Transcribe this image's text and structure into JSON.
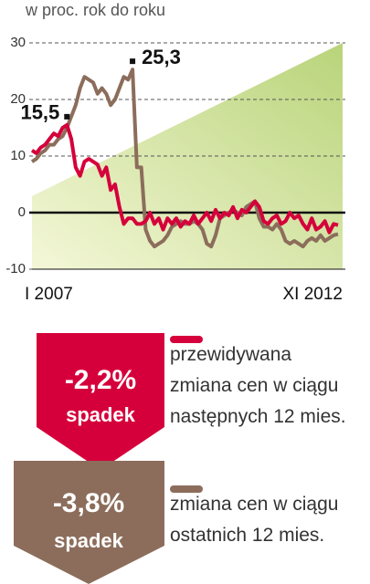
{
  "chart_data": {
    "type": "line",
    "subtitle": "w proc. rok do roku",
    "categories": [
      "I 2007",
      null,
      null,
      null,
      null,
      null,
      null,
      null,
      null,
      null,
      null,
      null,
      null,
      null,
      null,
      null,
      null,
      null,
      null,
      null,
      null,
      null,
      null,
      null,
      null,
      null,
      null,
      null,
      null,
      null,
      null,
      null,
      null,
      null,
      null,
      null,
      null,
      null,
      null,
      null,
      null,
      null,
      null,
      null,
      null,
      null,
      null,
      null,
      null,
      null,
      null,
      null,
      null,
      null,
      null,
      null,
      null,
      null,
      null,
      null,
      null,
      null,
      null,
      null,
      null,
      null,
      null,
      null,
      null,
      null,
      "XI 2012"
    ],
    "ylim": [
      -10,
      30
    ],
    "yticks": [
      -10,
      0,
      10,
      20,
      30
    ],
    "grid": true,
    "series": [
      {
        "name": "przewidywana\nzmiana cen w ciągu\nnastępnych 12 mies.",
        "color": "#d5003b",
        "values": [
          11,
          10.5,
          11.5,
          12,
          13,
          14,
          13.5,
          15,
          15.5,
          13,
          8,
          6.5,
          9,
          9.5,
          9,
          8.5,
          6.5,
          8,
          4,
          5,
          1,
          -2,
          -1,
          -1,
          -2,
          -2,
          -1.5,
          0,
          -2,
          -1,
          -3,
          -1,
          -2,
          -1,
          -2.5,
          -1.5,
          -2,
          -0.5,
          -2,
          -1,
          0,
          -1.5,
          0.5,
          -1,
          0,
          -0.5,
          1,
          -1,
          0.5,
          0,
          1,
          2,
          1,
          -1.5,
          -2,
          -1,
          -0.5,
          -2,
          -1.5,
          0,
          -1,
          -0.5,
          -2,
          -3,
          -1,
          -3,
          -2.5,
          -1.5,
          -3.5,
          -2,
          -2.2
        ],
        "value_labels": [
          null,
          null,
          null,
          null,
          null,
          null,
          null,
          null,
          "15,5",
          null,
          null,
          null,
          null,
          null,
          null,
          null,
          null,
          null,
          null,
          null,
          null,
          null,
          null,
          null,
          null,
          null,
          null,
          null,
          null,
          null,
          null,
          null,
          null,
          null,
          null,
          null,
          null,
          null,
          null,
          null,
          null,
          null,
          null,
          null,
          null,
          null,
          null,
          null,
          null,
          null,
          null,
          null,
          null,
          null,
          null,
          null,
          null,
          null,
          null,
          null,
          null,
          null,
          null,
          null,
          null,
          null,
          null,
          null,
          null,
          null,
          null
        ],
        "change": {
          "value": -2.2,
          "label": "-2,2%"
        },
        "change_text": "spadek"
      },
      {
        "name": "zmiana cen w ciągu\nostatnich 12 mies.",
        "color": "#8c6d5b",
        "values": [
          9,
          9.5,
          10.5,
          11,
          12,
          12,
          13,
          13.5,
          15,
          17,
          19,
          22,
          24,
          23.5,
          23,
          21,
          22,
          21,
          19,
          20,
          22,
          24,
          23.5,
          25.3,
          8,
          8,
          -3,
          -5,
          -6,
          -5.5,
          -5,
          -4,
          -2.5,
          -2,
          -1.5,
          -2,
          -2,
          -1.5,
          -2,
          -3,
          -5.5,
          -6,
          -4,
          -1,
          -0.5,
          0,
          0.5,
          0,
          -0.5,
          1,
          1.5,
          2,
          -1,
          -2.5,
          -2.5,
          -3,
          -2,
          -3,
          -5,
          -5.5,
          -5,
          -5.5,
          -6,
          -5,
          -4.5,
          -5,
          -4,
          -5,
          -4.5,
          -4,
          -3.8
        ],
        "value_labels": [
          null,
          null,
          null,
          null,
          null,
          null,
          null,
          null,
          null,
          null,
          null,
          null,
          null,
          null,
          null,
          null,
          null,
          null,
          null,
          null,
          null,
          null,
          null,
          "25,3",
          null,
          null,
          null,
          null,
          null,
          null,
          null,
          null,
          null,
          null,
          null,
          null,
          null,
          null,
          null,
          null,
          null,
          null,
          null,
          null,
          null,
          null,
          null,
          null,
          null,
          null,
          null,
          null,
          null,
          null,
          null,
          null,
          null,
          null,
          null,
          null,
          null,
          null,
          null,
          null,
          null,
          null,
          null,
          null,
          null,
          null,
          null
        ],
        "change": {
          "value": -3.8,
          "label": "-3,8%"
        },
        "change_text": "spadek"
      }
    ]
  }
}
